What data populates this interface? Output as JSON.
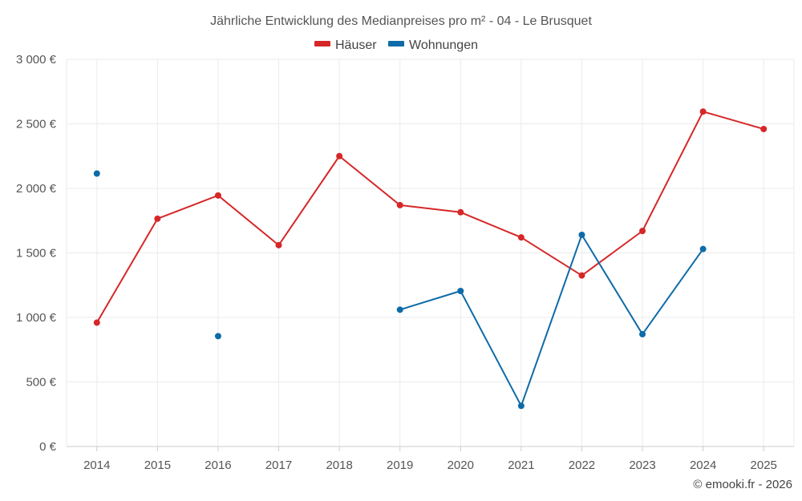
{
  "chart_data": {
    "type": "line",
    "title": "Jährliche Entwicklung des Medianpreises pro m² - 04 - Le Brusquet",
    "categories": [
      "2014",
      "2015",
      "2016",
      "2017",
      "2018",
      "2019",
      "2020",
      "2021",
      "2022",
      "2023",
      "2024",
      "2025"
    ],
    "series": [
      {
        "name": "Häuser",
        "color": "#d62728",
        "values": [
          960,
          1765,
          1945,
          1560,
          2250,
          1870,
          1815,
          1620,
          1325,
          1670,
          2595,
          2460
        ]
      },
      {
        "name": "Wohnungen",
        "color": "#0e6ba8",
        "values": [
          2115,
          null,
          855,
          null,
          null,
          1060,
          1205,
          315,
          1640,
          870,
          1530,
          null
        ]
      }
    ],
    "xlabel": "",
    "ylabel": "",
    "ylim": [
      0,
      3000
    ],
    "yticks": [
      0,
      500,
      1000,
      1500,
      2000,
      2500,
      3000
    ],
    "ytick_labels": [
      "0 €",
      "500 €",
      "1 000 €",
      "1 500 €",
      "2 000 €",
      "2 500 €",
      "3 000 €"
    ],
    "grid": true,
    "legend_position": "top-center"
  },
  "credit": "© emooki.fr - 2026"
}
